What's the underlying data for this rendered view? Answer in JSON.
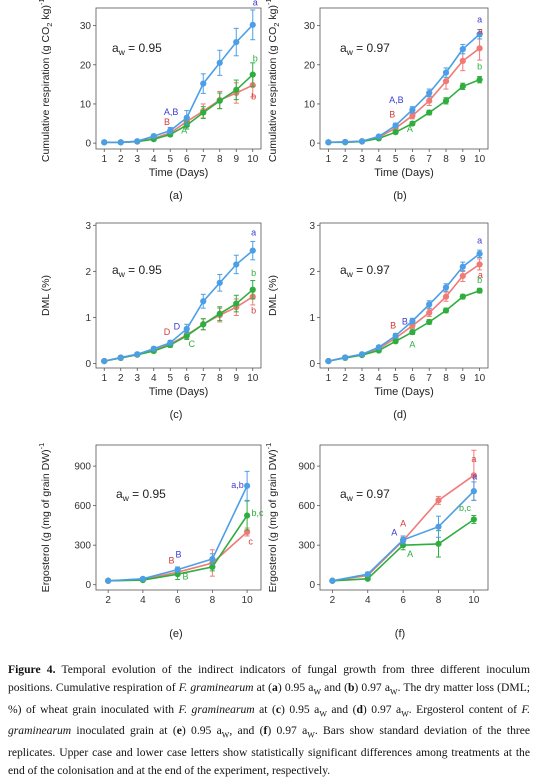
{
  "colors": {
    "blue": "#4c9fe6",
    "red": "#f07a76",
    "green": "#2fae3f",
    "letter_blue": "#3b3bd6",
    "letter_red": "#d33b3b",
    "letter_green": "#2fae3f"
  },
  "caption": {
    "label": "Figure 4.",
    "segments": [
      {
        "t": " Temporal evolution of the indirect indicators of fungal growth from three different inoculum positions. Cumulative respiration of ",
        "s": ""
      },
      {
        "t": "F. graminearum",
        "s": "i"
      },
      {
        "t": " at (",
        "s": ""
      },
      {
        "t": "a",
        "s": "b"
      },
      {
        "t": ") 0.95 a",
        "s": ""
      },
      {
        "t": "W",
        "s": "sub"
      },
      {
        "t": " and (",
        "s": ""
      },
      {
        "t": "b",
        "s": "b"
      },
      {
        "t": ") 0.97 a",
        "s": ""
      },
      {
        "t": "W",
        "s": "sub"
      },
      {
        "t": ". The dry matter loss (DML; %) of wheat grain inoculated with ",
        "s": ""
      },
      {
        "t": "F. graminearum",
        "s": "i"
      },
      {
        "t": " at (",
        "s": ""
      },
      {
        "t": "c",
        "s": "b"
      },
      {
        "t": ") 0.95 a",
        "s": ""
      },
      {
        "t": "W",
        "s": "sub"
      },
      {
        "t": " and (",
        "s": ""
      },
      {
        "t": "d",
        "s": "b"
      },
      {
        "t": ") 0.97 a",
        "s": ""
      },
      {
        "t": "W",
        "s": "sub"
      },
      {
        "t": ". Ergosterol content of ",
        "s": ""
      },
      {
        "t": "F. graminearum",
        "s": "i"
      },
      {
        "t": " inoculated grain at (",
        "s": ""
      },
      {
        "t": "e",
        "s": "b"
      },
      {
        "t": ") 0.95 a",
        "s": ""
      },
      {
        "t": "W",
        "s": "sub"
      },
      {
        "t": ", and (",
        "s": ""
      },
      {
        "t": "f",
        "s": "b"
      },
      {
        "t": ") 0.97 a",
        "s": ""
      },
      {
        "t": "W",
        "s": "sub"
      },
      {
        "t": ". Bars show standard deviation of the three replicates. Upper case and lower case letters show statistically significant differences among treatments at the end of the colonisation and at the end of the experiment, respectively.",
        "s": ""
      }
    ]
  },
  "chart_data": [
    {
      "id": "a",
      "type": "line",
      "panel_label": "(a)",
      "aw_label": "0.95",
      "xlabel": "Time (Days)",
      "ylabel": "Cumulative respiration (g CO2 kg-1)",
      "x": [
        1,
        2,
        3,
        4,
        5,
        6,
        7,
        8,
        9,
        10
      ],
      "xticks": [
        1,
        2,
        3,
        4,
        5,
        6,
        7,
        8,
        9,
        10
      ],
      "yticks": [
        0,
        10,
        20,
        30
      ],
      "ylim": [
        -1.5,
        34.5
      ],
      "xlim": [
        0.5,
        10.5
      ],
      "series": [
        {
          "color": "blue",
          "values": [
            0.2,
            0.2,
            0.5,
            1.8,
            3.2,
            6.5,
            15.2,
            20.5,
            25.8,
            30.2
          ],
          "err": [
            0.1,
            0.1,
            0.2,
            0.4,
            0.8,
            1.8,
            2.5,
            3.2,
            3.5,
            3.8
          ]
        },
        {
          "color": "red",
          "values": [
            0.2,
            0.2,
            0.4,
            1.2,
            2.6,
            5.5,
            8.2,
            11.0,
            12.8,
            14.8
          ],
          "err": [
            0.1,
            0.1,
            0.2,
            0.3,
            0.6,
            1.2,
            1.8,
            2.2,
            2.6,
            3.0
          ]
        },
        {
          "color": "green",
          "values": [
            0.2,
            0.2,
            0.4,
            1.0,
            2.2,
            4.6,
            7.8,
            10.8,
            13.6,
            17.5
          ],
          "err": [
            0.1,
            0.1,
            0.2,
            0.3,
            0.5,
            1.0,
            1.5,
            2.0,
            2.5,
            3.0
          ]
        }
      ],
      "annotations": [
        {
          "text": "A,B",
          "color": "letter_blue",
          "x": 5.05,
          "y": 7.2
        },
        {
          "text": "B",
          "color": "letter_red",
          "x": 4.8,
          "y": 4.6
        },
        {
          "text": "A",
          "color": "letter_green",
          "x": 5.85,
          "y": 2.4
        },
        {
          "text": "a",
          "color": "letter_blue",
          "x": 10.15,
          "y": 35.2
        },
        {
          "text": "b",
          "color": "letter_green",
          "x": 10.15,
          "y": 20.8
        },
        {
          "text": "b",
          "color": "letter_red",
          "x": 10.05,
          "y": 11.2
        }
      ]
    },
    {
      "id": "b",
      "type": "line",
      "panel_label": "(b)",
      "aw_label": "0.97",
      "xlabel": "Time (Days)",
      "ylabel": "Cumulative respiration (g CO2 kg-1)",
      "x": [
        1,
        2,
        3,
        4,
        5,
        6,
        7,
        8,
        9,
        10
      ],
      "xticks": [
        1,
        2,
        3,
        4,
        5,
        6,
        7,
        8,
        9,
        10
      ],
      "yticks": [
        0,
        10,
        20,
        30
      ],
      "ylim": [
        -1.5,
        34.5
      ],
      "xlim": [
        0.5,
        10.5
      ],
      "series": [
        {
          "color": "blue",
          "values": [
            0.2,
            0.3,
            0.5,
            1.7,
            4.5,
            8.5,
            12.8,
            18.0,
            24.0,
            27.8
          ],
          "err": [
            0.1,
            0.1,
            0.2,
            0.3,
            0.6,
            0.8,
            1.0,
            1.2,
            1.2,
            1.2
          ]
        },
        {
          "color": "red",
          "values": [
            0.2,
            0.3,
            0.5,
            1.5,
            3.8,
            7.0,
            10.8,
            15.8,
            21.0,
            24.2
          ],
          "err": [
            0.1,
            0.1,
            0.2,
            0.3,
            0.5,
            0.8,
            1.2,
            2.0,
            2.5,
            3.0
          ]
        },
        {
          "color": "green",
          "values": [
            0.2,
            0.2,
            0.4,
            1.2,
            2.8,
            5.0,
            7.8,
            10.8,
            14.5,
            16.2
          ],
          "err": [
            0.1,
            0.1,
            0.1,
            0.2,
            0.4,
            0.5,
            0.6,
            0.8,
            0.8,
            0.8
          ]
        }
      ],
      "annotations": [
        {
          "text": "A,B",
          "color": "letter_blue",
          "x": 5.05,
          "y": 10.2
        },
        {
          "text": "B",
          "color": "letter_red",
          "x": 4.8,
          "y": 6.6
        },
        {
          "text": "A",
          "color": "letter_green",
          "x": 5.85,
          "y": 2.8
        },
        {
          "text": "a",
          "color": "letter_blue",
          "x": 10.0,
          "y": 30.8
        },
        {
          "text": "a",
          "color": "letter_red",
          "x": 10.05,
          "y": 27.8
        },
        {
          "text": "b",
          "color": "letter_green",
          "x": 10.0,
          "y": 18.8
        }
      ]
    },
    {
      "id": "c",
      "type": "line",
      "panel_label": "(c)",
      "aw_label": "0.95",
      "xlabel": "Time (Days)",
      "ylabel": "DML (%)",
      "x": [
        1,
        2,
        3,
        4,
        5,
        6,
        7,
        8,
        9,
        10
      ],
      "xticks": [
        1,
        2,
        3,
        4,
        5,
        6,
        7,
        8,
        9,
        10
      ],
      "yticks": [
        0,
        1,
        2,
        3
      ],
      "ylim": [
        -0.1,
        3.05
      ],
      "xlim": [
        0.5,
        10.5
      ],
      "series": [
        {
          "color": "blue",
          "values": [
            0.05,
            0.13,
            0.2,
            0.32,
            0.45,
            0.75,
            1.35,
            1.75,
            2.15,
            2.45
          ],
          "err": [
            0.01,
            0.02,
            0.03,
            0.04,
            0.05,
            0.1,
            0.15,
            0.18,
            0.2,
            0.2
          ]
        },
        {
          "color": "red",
          "values": [
            0.05,
            0.12,
            0.19,
            0.28,
            0.42,
            0.62,
            0.85,
            1.05,
            1.22,
            1.45
          ],
          "err": [
            0.01,
            0.02,
            0.03,
            0.04,
            0.05,
            0.08,
            0.12,
            0.15,
            0.18,
            0.18
          ]
        },
        {
          "color": "green",
          "values": [
            0.05,
            0.12,
            0.19,
            0.27,
            0.4,
            0.6,
            0.85,
            1.08,
            1.3,
            1.6
          ],
          "err": [
            0.01,
            0.02,
            0.03,
            0.04,
            0.05,
            0.08,
            0.12,
            0.15,
            0.18,
            0.2
          ]
        }
      ],
      "annotations": [
        {
          "text": "D",
          "color": "letter_red",
          "x": 4.8,
          "y": 0.62
        },
        {
          "text": "D",
          "color": "letter_blue",
          "x": 5.4,
          "y": 0.74
        },
        {
          "text": "C",
          "color": "letter_green",
          "x": 6.3,
          "y": 0.36
        },
        {
          "text": "a",
          "color": "letter_blue",
          "x": 10.05,
          "y": 2.78
        },
        {
          "text": "b",
          "color": "letter_green",
          "x": 10.05,
          "y": 1.9
        },
        {
          "text": "b",
          "color": "letter_red",
          "x": 10.05,
          "y": 1.08
        }
      ]
    },
    {
      "id": "d",
      "type": "line",
      "panel_label": "(d)",
      "aw_label": "0.97",
      "xlabel": "Time (Days)",
      "ylabel": "DML (%)",
      "x": [
        1,
        2,
        3,
        4,
        5,
        6,
        7,
        8,
        9,
        10
      ],
      "xticks": [
        1,
        2,
        3,
        4,
        5,
        6,
        7,
        8,
        9,
        10
      ],
      "yticks": [
        0,
        1,
        2,
        3
      ],
      "ylim": [
        -0.1,
        3.05
      ],
      "xlim": [
        0.5,
        10.5
      ],
      "series": [
        {
          "color": "blue",
          "values": [
            0.05,
            0.13,
            0.2,
            0.35,
            0.6,
            0.92,
            1.28,
            1.65,
            2.1,
            2.38
          ],
          "err": [
            0.01,
            0.02,
            0.03,
            0.04,
            0.05,
            0.06,
            0.08,
            0.08,
            0.1,
            0.08
          ]
        },
        {
          "color": "red",
          "values": [
            0.05,
            0.13,
            0.19,
            0.32,
            0.55,
            0.82,
            1.1,
            1.45,
            1.9,
            2.15
          ],
          "err": [
            0.01,
            0.02,
            0.03,
            0.04,
            0.05,
            0.06,
            0.08,
            0.1,
            0.12,
            0.12
          ]
        },
        {
          "color": "green",
          "values": [
            0.05,
            0.12,
            0.18,
            0.28,
            0.48,
            0.68,
            0.9,
            1.15,
            1.45,
            1.58
          ],
          "err": [
            0.01,
            0.02,
            0.02,
            0.03,
            0.04,
            0.05,
            0.05,
            0.05,
            0.05,
            0.05
          ]
        }
      ],
      "annotations": [
        {
          "text": "B",
          "color": "letter_red",
          "x": 4.85,
          "y": 0.76
        },
        {
          "text": "B",
          "color": "letter_blue",
          "x": 5.55,
          "y": 0.84
        },
        {
          "text": "A",
          "color": "letter_green",
          "x": 6.0,
          "y": 0.34
        },
        {
          "text": "a",
          "color": "letter_blue",
          "x": 10.0,
          "y": 2.6
        },
        {
          "text": "a",
          "color": "letter_red",
          "x": 10.05,
          "y": 1.85
        },
        {
          "text": "b",
          "color": "letter_green",
          "x": 10.0,
          "y": 1.75
        }
      ]
    },
    {
      "id": "e",
      "type": "line",
      "panel_label": "(e)",
      "aw_label": "0.95",
      "xlabel": "",
      "ylabel": "Ergosterol (g (mg of grain DW)-1)",
      "x": [
        2,
        4,
        6,
        8,
        10
      ],
      "xticks": [
        2,
        4,
        6,
        8,
        10
      ],
      "yticks": [
        0,
        300,
        600,
        900
      ],
      "ylim": [
        -40,
        1060
      ],
      "xlim": [
        1.3,
        10.8
      ],
      "series": [
        {
          "color": "blue",
          "values": [
            30,
            45,
            115,
            195,
            750
          ],
          "err": [
            5,
            10,
            20,
            40,
            110
          ]
        },
        {
          "color": "red",
          "values": [
            30,
            40,
            95,
            165,
            400
          ],
          "err": [
            5,
            10,
            20,
            100,
            30
          ]
        },
        {
          "color": "green",
          "values": [
            30,
            35,
            80,
            135,
            525
          ],
          "err": [
            5,
            8,
            40,
            30,
            110
          ]
        }
      ],
      "annotations": [
        {
          "text": "B",
          "color": "letter_red",
          "x": 5.65,
          "y": 160
        },
        {
          "text": "B",
          "color": "letter_blue",
          "x": 6.05,
          "y": 205
        },
        {
          "text": "B",
          "color": "letter_green",
          "x": 6.45,
          "y": 40
        },
        {
          "text": "a,b",
          "color": "letter_blue",
          "x": 9.45,
          "y": 735
        },
        {
          "text": "b,c",
          "color": "letter_green",
          "x": 10.6,
          "y": 520
        },
        {
          "text": "c",
          "color": "letter_red",
          "x": 10.2,
          "y": 305
        }
      ]
    },
    {
      "id": "f",
      "type": "line",
      "panel_label": "(f)",
      "aw_label": "0.97",
      "xlabel": "",
      "ylabel": "Ergosterol (g (mg of grain DW)-1)",
      "x": [
        2,
        4,
        6,
        8,
        10
      ],
      "xticks": [
        2,
        4,
        6,
        8,
        10
      ],
      "yticks": [
        0,
        300,
        600,
        900
      ],
      "ylim": [
        -40,
        1060
      ],
      "xlim": [
        1.3,
        10.8
      ],
      "series": [
        {
          "color": "blue",
          "values": [
            30,
            80,
            340,
            440,
            710
          ],
          "err": [
            5,
            15,
            30,
            80,
            70
          ]
        },
        {
          "color": "red",
          "values": [
            30,
            70,
            335,
            640,
            830
          ],
          "err": [
            5,
            10,
            25,
            30,
            190
          ]
        },
        {
          "color": "green",
          "values": [
            30,
            45,
            300,
            310,
            495
          ],
          "err": [
            5,
            10,
            35,
            100,
            30
          ]
        }
      ],
      "annotations": [
        {
          "text": "A",
          "color": "letter_red",
          "x": 6.0,
          "y": 440
        },
        {
          "text": "A",
          "color": "letter_blue",
          "x": 5.5,
          "y": 375
        },
        {
          "text": "A",
          "color": "letter_green",
          "x": 6.4,
          "y": 210
        },
        {
          "text": "a",
          "color": "letter_blue",
          "x": 10.05,
          "y": 800
        },
        {
          "text": "b,c",
          "color": "letter_green",
          "x": 9.5,
          "y": 560
        },
        {
          "text": "a",
          "color": "letter_red",
          "x": 10.0,
          "y": 930
        }
      ]
    }
  ]
}
